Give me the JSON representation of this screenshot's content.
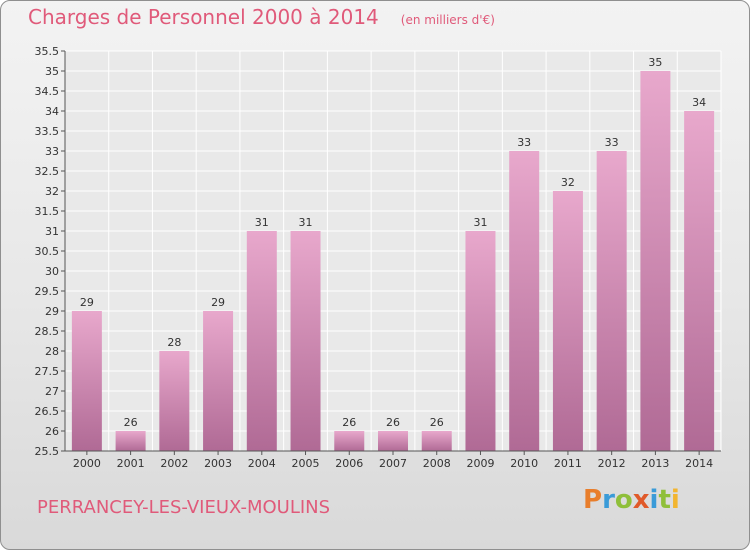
{
  "chart_data": {
    "type": "bar",
    "title": "Charges de Personnel 2000 à 2014",
    "subtitle": "(en milliers d'€)",
    "categories": [
      "2000",
      "2001",
      "2002",
      "2003",
      "2004",
      "2005",
      "2006",
      "2007",
      "2008",
      "2009",
      "2010",
      "2011",
      "2012",
      "2013",
      "2014"
    ],
    "values": [
      29,
      26,
      28,
      29,
      31,
      31,
      26,
      26,
      26,
      31,
      33,
      32,
      33,
      35,
      34
    ],
    "data_labels": [
      "29",
      "26",
      "28",
      "29",
      "31",
      "31",
      "26",
      "26",
      "26",
      "31",
      "33",
      "32",
      "33",
      "35",
      "34"
    ],
    "ylim": [
      25.5,
      35.5
    ],
    "yticks": [
      "25.5",
      "26",
      "26.5",
      "27",
      "27.5",
      "28",
      "28.5",
      "29",
      "29.5",
      "30",
      "30.5",
      "31",
      "31.5",
      "32",
      "32.5",
      "33",
      "33.5",
      "34",
      "34.5",
      "35",
      "35.5"
    ],
    "xlabel": "",
    "ylabel": "",
    "grid": true,
    "colors": {
      "bar_top": "#e8a8cc",
      "bar_bottom": "#b06a95",
      "grid": "#ffffff",
      "text_accent": "#e05a7a"
    }
  },
  "footer": {
    "commune": "PERRANCEY-LES-VIEUX-MOULINS",
    "logo_text": "Proxiti",
    "logo_colors": [
      "#e87e2c",
      "#3a9bd8",
      "#8fbf3a",
      "#e05a2a",
      "#3a9bd8",
      "#8fbf3a",
      "#f2b530"
    ]
  }
}
